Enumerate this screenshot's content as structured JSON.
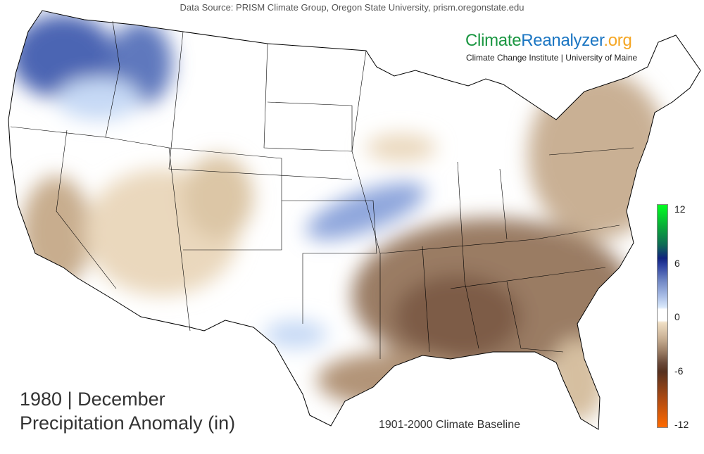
{
  "header": {
    "data_source": "Data Source: PRISM Climate Group, Oregon State University, prism.oregonstate.edu"
  },
  "brand": {
    "part1": "Climate",
    "part2": "Reanalyzer",
    ".org": ".org",
    "tagline": "Climate Change Institute | University of Maine",
    "colors": {
      "climate": "#1a9641",
      "reanalyzer": "#1a75c2",
      "org": "#f5a623"
    }
  },
  "title": {
    "line1": "1980 | December",
    "line2": "Precipitation Anomaly (in)"
  },
  "baseline": "1901-2000 Climate Baseline",
  "map": {
    "region": "Contiguous United States",
    "variable": "precipitation anomaly",
    "units": "in"
  },
  "colorbar": {
    "min": -12,
    "max": 12,
    "ticks": [
      "12",
      "6",
      "0",
      "-6",
      "-12"
    ],
    "colors": {
      "high": "#00ff20",
      "wet": "#11237f",
      "neutral": "#ffffff",
      "dry": "#6b4b3a",
      "low": "#ff6a00"
    }
  }
}
